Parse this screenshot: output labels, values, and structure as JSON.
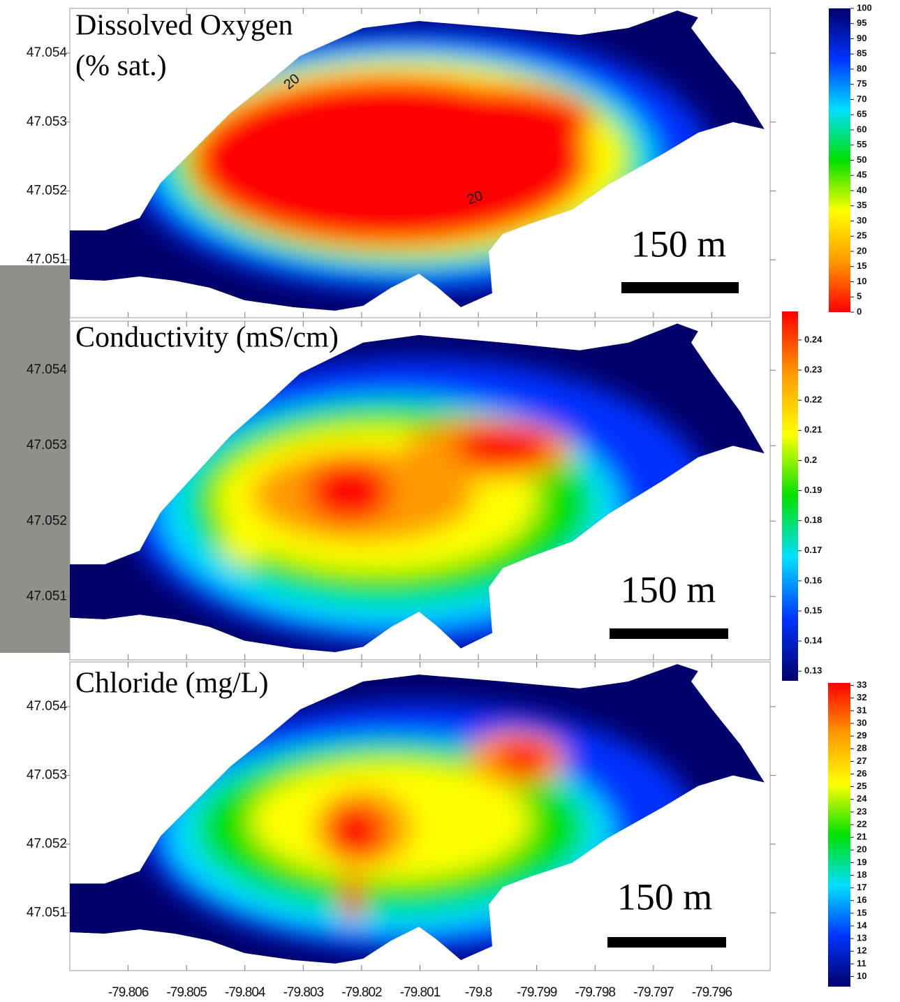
{
  "chart_data": [
    {
      "type": "contour",
      "title": "Dissolved Oxygen",
      "subtitle": "(% sat.)",
      "ylim": [
        47.05016,
        47.05465
      ],
      "yticks": [
        47.051,
        47.052,
        47.053,
        47.054
      ],
      "xlim": [
        -79.807,
        -79.795
      ],
      "colors": [
        "#ff0000",
        "#ff9900",
        "#ffff00",
        "#00e000",
        "#00e0ff",
        "#0033ff",
        "#00006a"
      ],
      "colorbar_lim": [
        0,
        100
      ],
      "colorbar_ticks": [
        0,
        5,
        10,
        15,
        20,
        25,
        30,
        35,
        40,
        45,
        50,
        55,
        60,
        65,
        70,
        75,
        80,
        85,
        90,
        95,
        100
      ],
      "annotations": [
        "20",
        "20"
      ],
      "scale_bar": "150 m"
    },
    {
      "type": "contour",
      "title": "Conductivity (mS/cm)",
      "ylim": [
        47.05016,
        47.05465
      ],
      "yticks": [
        47.051,
        47.052,
        47.053,
        47.054
      ],
      "xlim": [
        -79.807,
        -79.795
      ],
      "colors": [
        "#00006a",
        "#0033ff",
        "#00e0ff",
        "#00e000",
        "#ffff00",
        "#ff9900",
        "#ff0000"
      ],
      "colorbar_lim": [
        0.1268,
        0.2495
      ],
      "colorbar_ticks": [
        0.13,
        0.14,
        0.15,
        0.16,
        0.17,
        0.18,
        0.19,
        0.2,
        0.21,
        0.22,
        0.23,
        0.24
      ],
      "scale_bar": "150 m"
    },
    {
      "type": "contour",
      "title": "Chloride (mg/L)",
      "ylim": [
        47.05016,
        47.05465
      ],
      "yticks": [
        47.051,
        47.052,
        47.053,
        47.054
      ],
      "xlim": [
        -79.807,
        -79.795
      ],
      "xticks": [
        -79.806,
        -79.805,
        -79.804,
        -79.803,
        -79.802,
        -79.801,
        -79.8,
        -79.799,
        -79.798,
        -79.797,
        -79.796
      ],
      "colors": [
        "#00006a",
        "#0033ff",
        "#00e0ff",
        "#00e000",
        "#ffff00",
        "#ff9900",
        "#ff0000"
      ],
      "colorbar_lim": [
        9.2,
        33.2
      ],
      "colorbar_ticks": [
        10,
        11,
        12,
        13,
        14,
        15,
        16,
        17,
        18,
        19,
        20,
        21,
        22,
        23,
        24,
        25,
        26,
        27,
        28,
        29,
        30,
        31,
        32,
        33
      ],
      "scale_bar": "150 m"
    }
  ]
}
